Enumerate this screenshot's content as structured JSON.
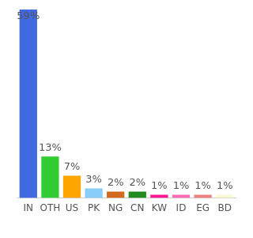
{
  "chart_data": {
    "type": "bar",
    "categories": [
      "IN",
      "OTH",
      "US",
      "PK",
      "NG",
      "CN",
      "KW",
      "ID",
      "EG",
      "BD"
    ],
    "values": [
      59,
      13,
      7,
      3,
      2,
      2,
      1,
      1,
      1,
      1
    ],
    "value_labels": [
      "59%",
      "13%",
      "7%",
      "3%",
      "2%",
      "2%",
      "1%",
      "1%",
      "1%",
      "1%"
    ],
    "colors": [
      "#4169e1",
      "#32cd32",
      "#ffa500",
      "#87cefa",
      "#d2691e",
      "#228b22",
      "#ff1493",
      "#ff69b4",
      "#f08080",
      "#fafad2"
    ],
    "ylim": [
      0,
      59
    ],
    "data_labels": true,
    "tick_labels": "x",
    "grid": false
  }
}
